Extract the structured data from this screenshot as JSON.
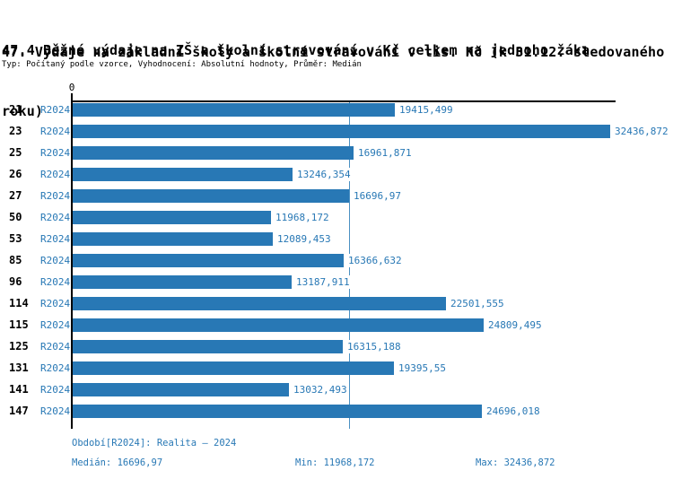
{
  "header": {
    "title_line1": "47. Výdaje na základní školy a školní stravování v tis. Kč (k 31.12. sledovaného",
    "title_line2": "roku)",
    "subtitle": "47.4 Běžné výdaje na ZŠ a školní stravování v Kč celkem na jednoho žáka",
    "meta": "Typ: Počítaný podle vzorce, Vyhodnocení: Absolutní hodnoty, Průměr: Medián"
  },
  "colors": {
    "bar": "#2878b5",
    "median_line": "#4a90c2",
    "axis": "#000000",
    "blue_text": "#2878b5",
    "background": "#ffffff"
  },
  "chart_data": {
    "type": "bar",
    "orientation": "horizontal",
    "title": "47.4 Běžné výdaje na ZŠ a školní stravování v Kč celkem na jednoho žáka",
    "series_name": "R2024",
    "axis_zero_label": "0",
    "xlim": [
      0,
      32900
    ],
    "grid": false,
    "legend_position": "none",
    "categories": [
      "21",
      "23",
      "25",
      "26",
      "27",
      "50",
      "53",
      "85",
      "96",
      "114",
      "115",
      "125",
      "131",
      "141",
      "147"
    ],
    "values": [
      19415.499,
      32436.872,
      16961.871,
      13246.354,
      16696.97,
      11968.172,
      12089.453,
      16366.632,
      13187.911,
      22501.555,
      24809.495,
      16315.188,
      19395.55,
      13032.493,
      24696.018
    ],
    "value_labels": [
      "19415,499",
      "32436,872",
      "16961,871",
      "13246,354",
      "16696,97",
      "11968,172",
      "12089,453",
      "16366,632",
      "13187,911",
      "22501,555",
      "24809,495",
      "16315,188",
      "19395,55",
      "13032,493",
      "24696,018"
    ],
    "median_value": 16696.97
  },
  "footer": {
    "period": "Období[R2024]: Realita – 2024",
    "median": "Medián: 16696,97",
    "min": "Min: 11968,172",
    "max": "Max: 32436,872"
  }
}
